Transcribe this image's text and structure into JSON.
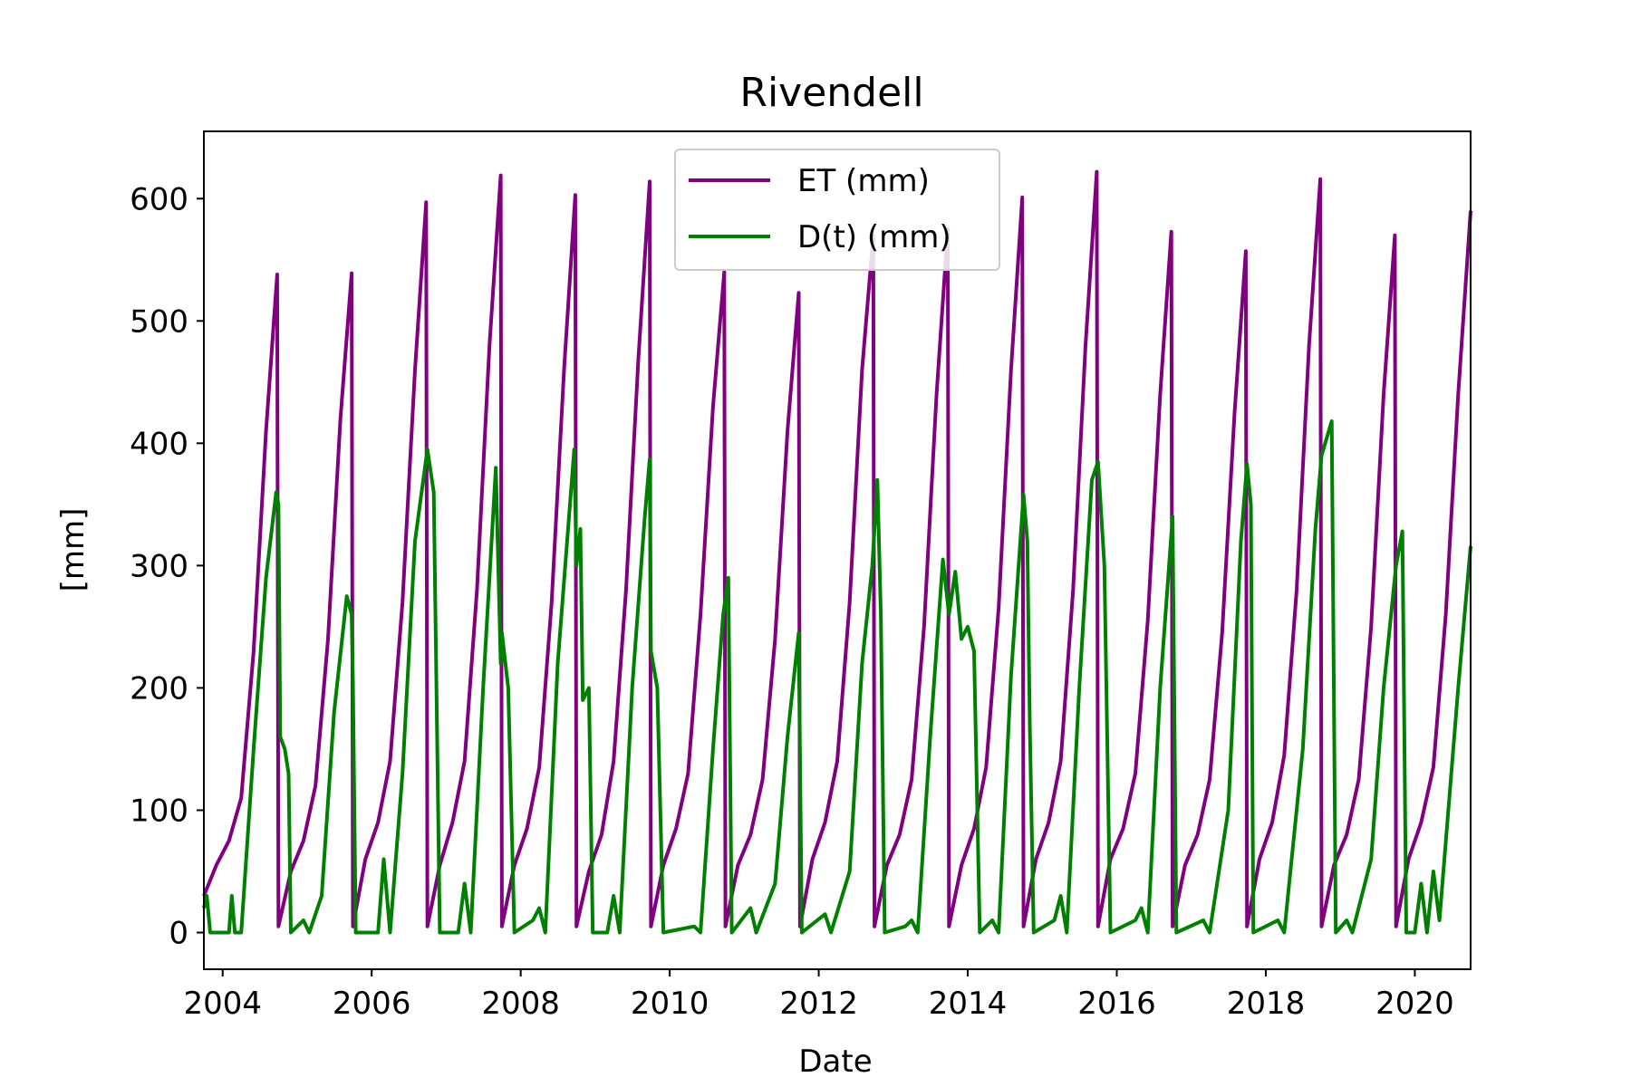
{
  "chart_data": {
    "type": "line",
    "title": "Rivendell",
    "xlabel": "Date",
    "ylabel": "[mm]",
    "xlim": [
      "2003-10-01",
      "2020-10-01"
    ],
    "ylim": [
      -30,
      655
    ],
    "x_ticks": [
      "2004",
      "2006",
      "2008",
      "2010",
      "2012",
      "2014",
      "2016",
      "2018",
      "2020"
    ],
    "y_ticks": [
      "0",
      "100",
      "200",
      "300",
      "400",
      "500",
      "600"
    ],
    "grid": false,
    "legend": "upper center",
    "series": [
      {
        "name": "ET (mm)",
        "color": "#800080",
        "points": [
          [
            "2003-10-01",
            30
          ],
          [
            "2003-12-01",
            55
          ],
          [
            "2004-02-01",
            75
          ],
          [
            "2004-04-01",
            110
          ],
          [
            "2004-06-01",
            230
          ],
          [
            "2004-08-01",
            410
          ],
          [
            "2004-09-25",
            538
          ],
          [
            "2004-10-01",
            5
          ],
          [
            "2004-12-01",
            50
          ],
          [
            "2005-02-01",
            75
          ],
          [
            "2005-04-01",
            120
          ],
          [
            "2005-06-01",
            240
          ],
          [
            "2005-08-01",
            420
          ],
          [
            "2005-09-25",
            539
          ],
          [
            "2005-10-01",
            5
          ],
          [
            "2005-12-01",
            60
          ],
          [
            "2006-02-01",
            90
          ],
          [
            "2006-04-01",
            140
          ],
          [
            "2006-06-01",
            270
          ],
          [
            "2006-08-01",
            460
          ],
          [
            "2006-09-25",
            597
          ],
          [
            "2006-10-01",
            5
          ],
          [
            "2006-12-01",
            55
          ],
          [
            "2007-02-01",
            90
          ],
          [
            "2007-04-01",
            140
          ],
          [
            "2007-06-01",
            280
          ],
          [
            "2007-08-01",
            480
          ],
          [
            "2007-09-25",
            619
          ],
          [
            "2007-10-01",
            5
          ],
          [
            "2007-12-01",
            55
          ],
          [
            "2008-02-01",
            85
          ],
          [
            "2008-04-01",
            135
          ],
          [
            "2008-06-01",
            270
          ],
          [
            "2008-08-01",
            460
          ],
          [
            "2008-09-25",
            603
          ],
          [
            "2008-10-01",
            5
          ],
          [
            "2008-12-01",
            50
          ],
          [
            "2009-02-01",
            80
          ],
          [
            "2009-04-01",
            140
          ],
          [
            "2009-06-01",
            280
          ],
          [
            "2009-08-01",
            470
          ],
          [
            "2009-09-25",
            614
          ],
          [
            "2009-10-01",
            5
          ],
          [
            "2009-12-01",
            55
          ],
          [
            "2010-02-01",
            85
          ],
          [
            "2010-04-01",
            130
          ],
          [
            "2010-06-01",
            260
          ],
          [
            "2010-08-01",
            430
          ],
          [
            "2010-09-25",
            540
          ],
          [
            "2010-10-01",
            5
          ],
          [
            "2010-12-01",
            55
          ],
          [
            "2011-02-01",
            80
          ],
          [
            "2011-04-01",
            125
          ],
          [
            "2011-06-01",
            240
          ],
          [
            "2011-08-01",
            410
          ],
          [
            "2011-09-25",
            523
          ],
          [
            "2011-10-01",
            5
          ],
          [
            "2011-12-01",
            60
          ],
          [
            "2012-02-01",
            90
          ],
          [
            "2012-04-01",
            140
          ],
          [
            "2012-06-01",
            270
          ],
          [
            "2012-08-01",
            460
          ],
          [
            "2012-09-25",
            570
          ],
          [
            "2012-10-01",
            5
          ],
          [
            "2012-12-01",
            55
          ],
          [
            "2013-02-01",
            80
          ],
          [
            "2013-04-01",
            125
          ],
          [
            "2013-06-01",
            250
          ],
          [
            "2013-08-01",
            440
          ],
          [
            "2013-09-25",
            575
          ],
          [
            "2013-10-01",
            5
          ],
          [
            "2013-12-01",
            55
          ],
          [
            "2014-02-01",
            85
          ],
          [
            "2014-04-01",
            135
          ],
          [
            "2014-06-01",
            265
          ],
          [
            "2014-08-01",
            460
          ],
          [
            "2014-09-25",
            601
          ],
          [
            "2014-10-01",
            5
          ],
          [
            "2014-12-01",
            60
          ],
          [
            "2015-02-01",
            90
          ],
          [
            "2015-04-01",
            140
          ],
          [
            "2015-06-01",
            280
          ],
          [
            "2015-08-01",
            480
          ],
          [
            "2015-09-25",
            622
          ],
          [
            "2015-10-01",
            5
          ],
          [
            "2015-12-01",
            60
          ],
          [
            "2016-02-01",
            85
          ],
          [
            "2016-04-01",
            130
          ],
          [
            "2016-06-01",
            255
          ],
          [
            "2016-08-01",
            440
          ],
          [
            "2016-09-25",
            573
          ],
          [
            "2016-10-01",
            5
          ],
          [
            "2016-12-01",
            55
          ],
          [
            "2017-02-01",
            80
          ],
          [
            "2017-04-01",
            125
          ],
          [
            "2017-06-01",
            245
          ],
          [
            "2017-08-01",
            425
          ],
          [
            "2017-09-25",
            557
          ],
          [
            "2017-10-01",
            5
          ],
          [
            "2017-12-01",
            60
          ],
          [
            "2018-02-01",
            90
          ],
          [
            "2018-04-01",
            145
          ],
          [
            "2018-06-01",
            280
          ],
          [
            "2018-08-01",
            480
          ],
          [
            "2018-09-25",
            616
          ],
          [
            "2018-10-01",
            5
          ],
          [
            "2018-12-01",
            55
          ],
          [
            "2019-02-01",
            80
          ],
          [
            "2019-04-01",
            125
          ],
          [
            "2019-06-01",
            250
          ],
          [
            "2019-08-01",
            440
          ],
          [
            "2019-09-25",
            570
          ],
          [
            "2019-10-01",
            5
          ],
          [
            "2019-12-01",
            60
          ],
          [
            "2020-02-01",
            90
          ],
          [
            "2020-04-01",
            135
          ],
          [
            "2020-06-01",
            260
          ],
          [
            "2020-08-01",
            440
          ],
          [
            "2020-10-01",
            590
          ]
        ]
      },
      {
        "name": "D(t) (mm)",
        "color": "#008000",
        "points": [
          [
            "2003-10-01",
            20
          ],
          [
            "2003-10-15",
            30
          ],
          [
            "2003-11-01",
            0
          ],
          [
            "2004-02-01",
            0
          ],
          [
            "2004-02-15",
            30
          ],
          [
            "2004-03-01",
            0
          ],
          [
            "2004-04-01",
            0
          ],
          [
            "2004-06-01",
            150
          ],
          [
            "2004-08-01",
            290
          ],
          [
            "2004-09-20",
            360
          ],
          [
            "2004-10-01",
            350
          ],
          [
            "2004-10-10",
            160
          ],
          [
            "2004-11-01",
            150
          ],
          [
            "2004-11-20",
            130
          ],
          [
            "2004-12-01",
            0
          ],
          [
            "2005-02-01",
            10
          ],
          [
            "2005-03-01",
            0
          ],
          [
            "2005-05-01",
            30
          ],
          [
            "2005-07-01",
            180
          ],
          [
            "2005-09-01",
            275
          ],
          [
            "2005-09-25",
            260
          ],
          [
            "2005-10-01",
            205
          ],
          [
            "2005-10-15",
            0
          ],
          [
            "2006-02-01",
            0
          ],
          [
            "2006-03-01",
            60
          ],
          [
            "2006-04-01",
            0
          ],
          [
            "2006-06-01",
            130
          ],
          [
            "2006-08-01",
            320
          ],
          [
            "2006-10-01",
            395
          ],
          [
            "2006-11-01",
            360
          ],
          [
            "2006-12-01",
            0
          ],
          [
            "2007-03-01",
            0
          ],
          [
            "2007-04-01",
            40
          ],
          [
            "2007-05-01",
            0
          ],
          [
            "2007-07-01",
            200
          ],
          [
            "2007-09-01",
            380
          ],
          [
            "2007-09-25",
            220
          ],
          [
            "2007-10-01",
            245
          ],
          [
            "2007-11-01",
            200
          ],
          [
            "2007-12-01",
            0
          ],
          [
            "2008-03-01",
            10
          ],
          [
            "2008-04-01",
            20
          ],
          [
            "2008-05-01",
            0
          ],
          [
            "2008-07-01",
            220
          ],
          [
            "2008-09-20",
            395
          ],
          [
            "2008-10-01",
            300
          ],
          [
            "2008-10-20",
            330
          ],
          [
            "2008-11-01",
            190
          ],
          [
            "2008-12-01",
            200
          ],
          [
            "2008-12-20",
            0
          ],
          [
            "2009-03-01",
            0
          ],
          [
            "2009-04-01",
            30
          ],
          [
            "2009-05-01",
            0
          ],
          [
            "2009-07-01",
            200
          ],
          [
            "2009-09-01",
            340
          ],
          [
            "2009-09-25",
            387
          ],
          [
            "2009-10-01",
            230
          ],
          [
            "2009-11-01",
            200
          ],
          [
            "2009-12-01",
            0
          ],
          [
            "2010-05-01",
            5
          ],
          [
            "2010-06-01",
            0
          ],
          [
            "2010-08-01",
            150
          ],
          [
            "2010-09-20",
            260
          ],
          [
            "2010-10-15",
            290
          ],
          [
            "2010-11-01",
            0
          ],
          [
            "2011-02-01",
            20
          ],
          [
            "2011-03-01",
            0
          ],
          [
            "2011-06-01",
            40
          ],
          [
            "2011-08-01",
            160
          ],
          [
            "2011-09-25",
            245
          ],
          [
            "2011-10-10",
            0
          ],
          [
            "2012-02-01",
            15
          ],
          [
            "2012-03-01",
            0
          ],
          [
            "2012-06-01",
            50
          ],
          [
            "2012-08-01",
            220
          ],
          [
            "2012-09-20",
            300
          ],
          [
            "2012-10-15",
            370
          ],
          [
            "2012-11-01",
            260
          ],
          [
            "2012-11-20",
            0
          ],
          [
            "2013-03-01",
            5
          ],
          [
            "2013-04-01",
            10
          ],
          [
            "2013-05-01",
            0
          ],
          [
            "2013-07-01",
            160
          ],
          [
            "2013-09-01",
            305
          ],
          [
            "2013-10-01",
            260
          ],
          [
            "2013-11-01",
            295
          ],
          [
            "2013-12-01",
            240
          ],
          [
            "2014-01-01",
            250
          ],
          [
            "2014-02-01",
            230
          ],
          [
            "2014-03-01",
            0
          ],
          [
            "2014-05-01",
            10
          ],
          [
            "2014-06-01",
            0
          ],
          [
            "2014-08-01",
            210
          ],
          [
            "2014-10-01",
            358
          ],
          [
            "2014-10-20",
            320
          ],
          [
            "2014-11-01",
            170
          ],
          [
            "2014-11-20",
            0
          ],
          [
            "2015-03-01",
            10
          ],
          [
            "2015-04-01",
            30
          ],
          [
            "2015-05-01",
            0
          ],
          [
            "2015-07-01",
            200
          ],
          [
            "2015-09-01",
            370
          ],
          [
            "2015-10-01",
            385
          ],
          [
            "2015-11-01",
            300
          ],
          [
            "2015-12-01",
            0
          ],
          [
            "2016-04-01",
            10
          ],
          [
            "2016-05-01",
            20
          ],
          [
            "2016-06-01",
            0
          ],
          [
            "2016-08-01",
            200
          ],
          [
            "2016-10-01",
            340
          ],
          [
            "2016-10-20",
            0
          ],
          [
            "2017-03-01",
            10
          ],
          [
            "2017-04-01",
            0
          ],
          [
            "2017-07-01",
            100
          ],
          [
            "2017-09-01",
            320
          ],
          [
            "2017-10-01",
            383
          ],
          [
            "2017-10-20",
            350
          ],
          [
            "2017-11-01",
            0
          ],
          [
            "2018-03-01",
            10
          ],
          [
            "2018-04-01",
            0
          ],
          [
            "2018-07-01",
            150
          ],
          [
            "2018-09-01",
            330
          ],
          [
            "2018-10-01",
            390
          ],
          [
            "2018-11-20",
            418
          ],
          [
            "2018-12-10",
            0
          ],
          [
            "2019-02-01",
            10
          ],
          [
            "2019-03-01",
            0
          ],
          [
            "2019-06-01",
            60
          ],
          [
            "2019-08-01",
            200
          ],
          [
            "2019-10-01",
            300
          ],
          [
            "2019-11-01",
            328
          ],
          [
            "2019-11-20",
            0
          ],
          [
            "2020-01-01",
            0
          ],
          [
            "2020-02-01",
            40
          ],
          [
            "2020-03-01",
            0
          ],
          [
            "2020-04-01",
            50
          ],
          [
            "2020-05-01",
            10
          ],
          [
            "2020-08-01",
            200
          ],
          [
            "2020-10-01",
            316
          ]
        ]
      }
    ]
  }
}
